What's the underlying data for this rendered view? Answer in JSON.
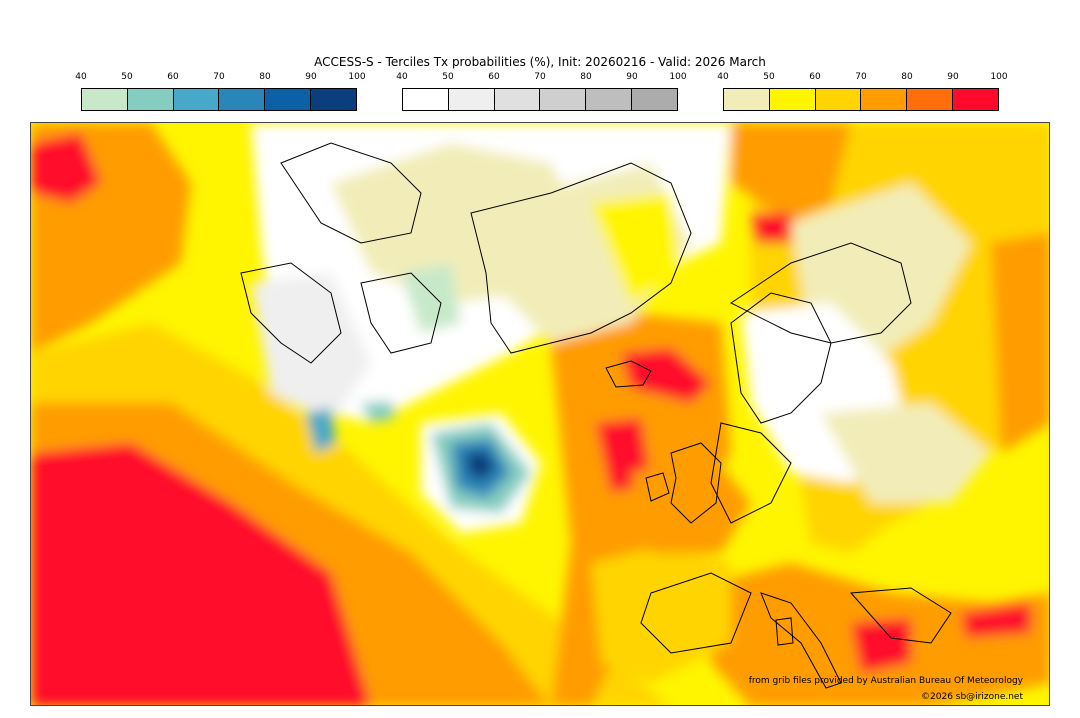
{
  "title": "ACCESS-S - Terciles Tx probabilities (%), Init: 20260216 - Valid: 2026 March",
  "colorbars": [
    {
      "name": "below-normal",
      "ticks": [
        "40",
        "50",
        "60",
        "70",
        "80",
        "90",
        "100"
      ],
      "colors": [
        "#c7e9c9",
        "#85cdc1",
        "#47a8c9",
        "#2a85b8",
        "#0c60a6",
        "#0a3e7c"
      ]
    },
    {
      "name": "near-normal",
      "ticks": [
        "40",
        "50",
        "60",
        "70",
        "80",
        "90",
        "100"
      ],
      "colors": [
        "#ffffff",
        "#efefef",
        "#e0e0e0",
        "#cfcfcf",
        "#bebebe",
        "#acacac"
      ]
    },
    {
      "name": "above-normal",
      "ticks": [
        "40",
        "50",
        "60",
        "70",
        "80",
        "90",
        "100"
      ],
      "colors": [
        "#f2edb8",
        "#fff500",
        "#ffd400",
        "#ff9c00",
        "#ff6e0a",
        "#ff0a2a"
      ]
    }
  ],
  "credits": {
    "source": "from grib files provided by Australian Bureau Of Meteorology",
    "copyright": "©2026 sb@irizone.net"
  }
}
